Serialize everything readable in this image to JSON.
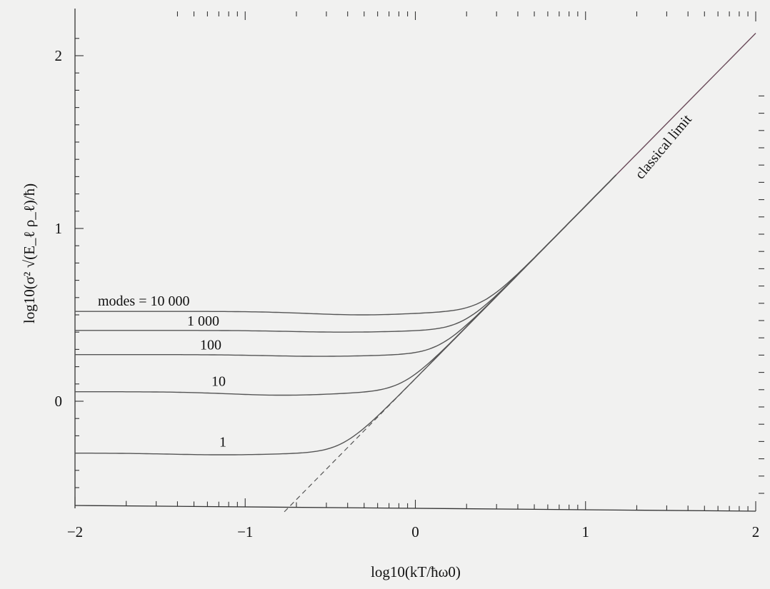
{
  "chart_data": {
    "type": "line",
    "title": "",
    "xlabel": "log10(kT/ħω0)",
    "ylabel": "log10(σ² √(E_ℓ ρ_ℓ)/ħ)",
    "xlim": [
      -2,
      2
    ],
    "ylim": [
      -0.62,
      2.25
    ],
    "x_ticks": [
      -2,
      -1,
      0,
      1,
      2
    ],
    "y_ticks": [
      0,
      1,
      2
    ],
    "x_tick_labels": [
      "−2",
      "−1",
      "0",
      "1",
      "2"
    ],
    "y_tick_labels": [
      "0",
      "1",
      "2"
    ],
    "grid": false,
    "series": [
      {
        "name": "modes = 10 000",
        "label": "modes = 10 000",
        "low_temp_value": 0.52,
        "min_value": 0.5
      },
      {
        "name": "1 000",
        "label": "1 000",
        "low_temp_value": 0.41,
        "min_value": 0.4
      },
      {
        "name": "100",
        "label": "100",
        "low_temp_value": 0.27,
        "min_value": 0.26
      },
      {
        "name": "10",
        "label": "10",
        "low_temp_value": 0.055,
        "min_value": 0.035
      },
      {
        "name": "1",
        "label": "1",
        "low_temp_value": -0.3,
        "min_value": -0.31
      }
    ],
    "classical_limit": {
      "label": "classical limit",
      "slope": 1.0,
      "intercept": 0.13,
      "x_range": [
        -0.77,
        2.0
      ],
      "dashed_below_x": 0.1
    }
  }
}
